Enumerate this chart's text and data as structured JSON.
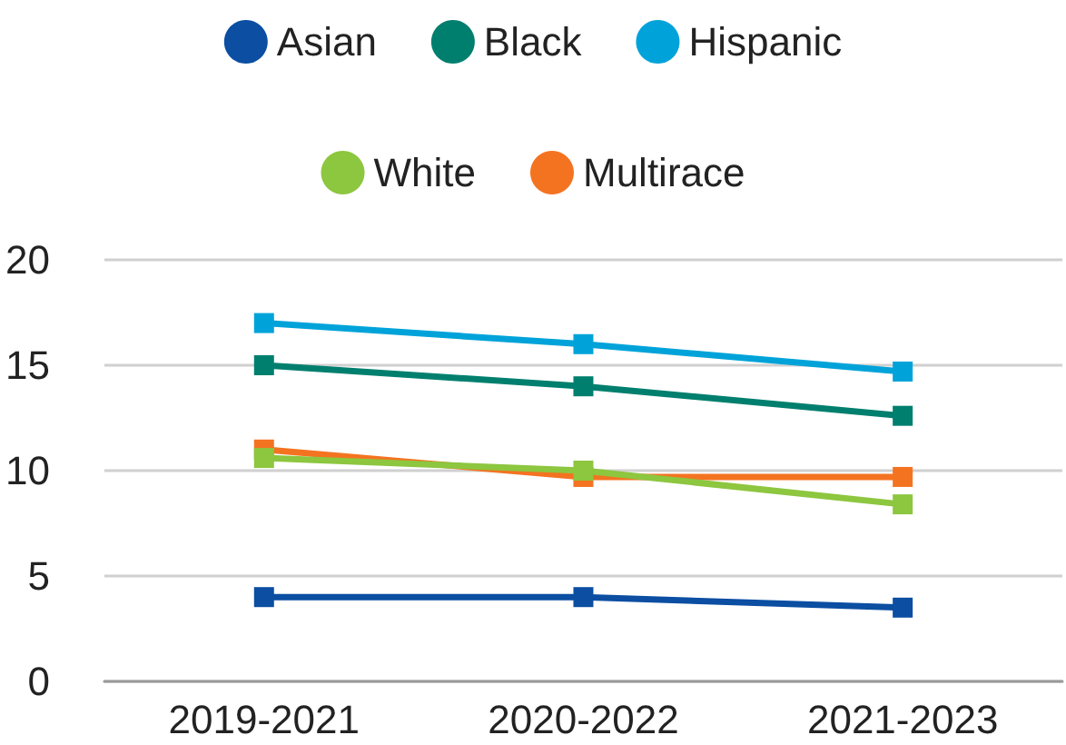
{
  "chart_data": {
    "type": "line",
    "categories": [
      "2019-2021",
      "2020-2022",
      "2021-2023"
    ],
    "series": [
      {
        "name": "Asian",
        "color": "#0b4ea2",
        "values": [
          4.0,
          4.0,
          3.5
        ]
      },
      {
        "name": "Black",
        "color": "#007f6e",
        "values": [
          15.0,
          14.0,
          12.6
        ]
      },
      {
        "name": "Hispanic",
        "color": "#00a3d9",
        "values": [
          17.0,
          16.0,
          14.7
        ]
      },
      {
        "name": "White",
        "color": "#8dc63f",
        "values": [
          10.6,
          10.0,
          8.4
        ]
      },
      {
        "name": "Multirace",
        "color": "#f47321",
        "values": [
          11.0,
          9.7,
          9.7
        ]
      }
    ],
    "ylim": [
      0,
      20
    ],
    "yticks": [
      0,
      5,
      10,
      15,
      20
    ],
    "grid": "y",
    "legend": "top",
    "marker": "square",
    "line_style": "solid"
  }
}
